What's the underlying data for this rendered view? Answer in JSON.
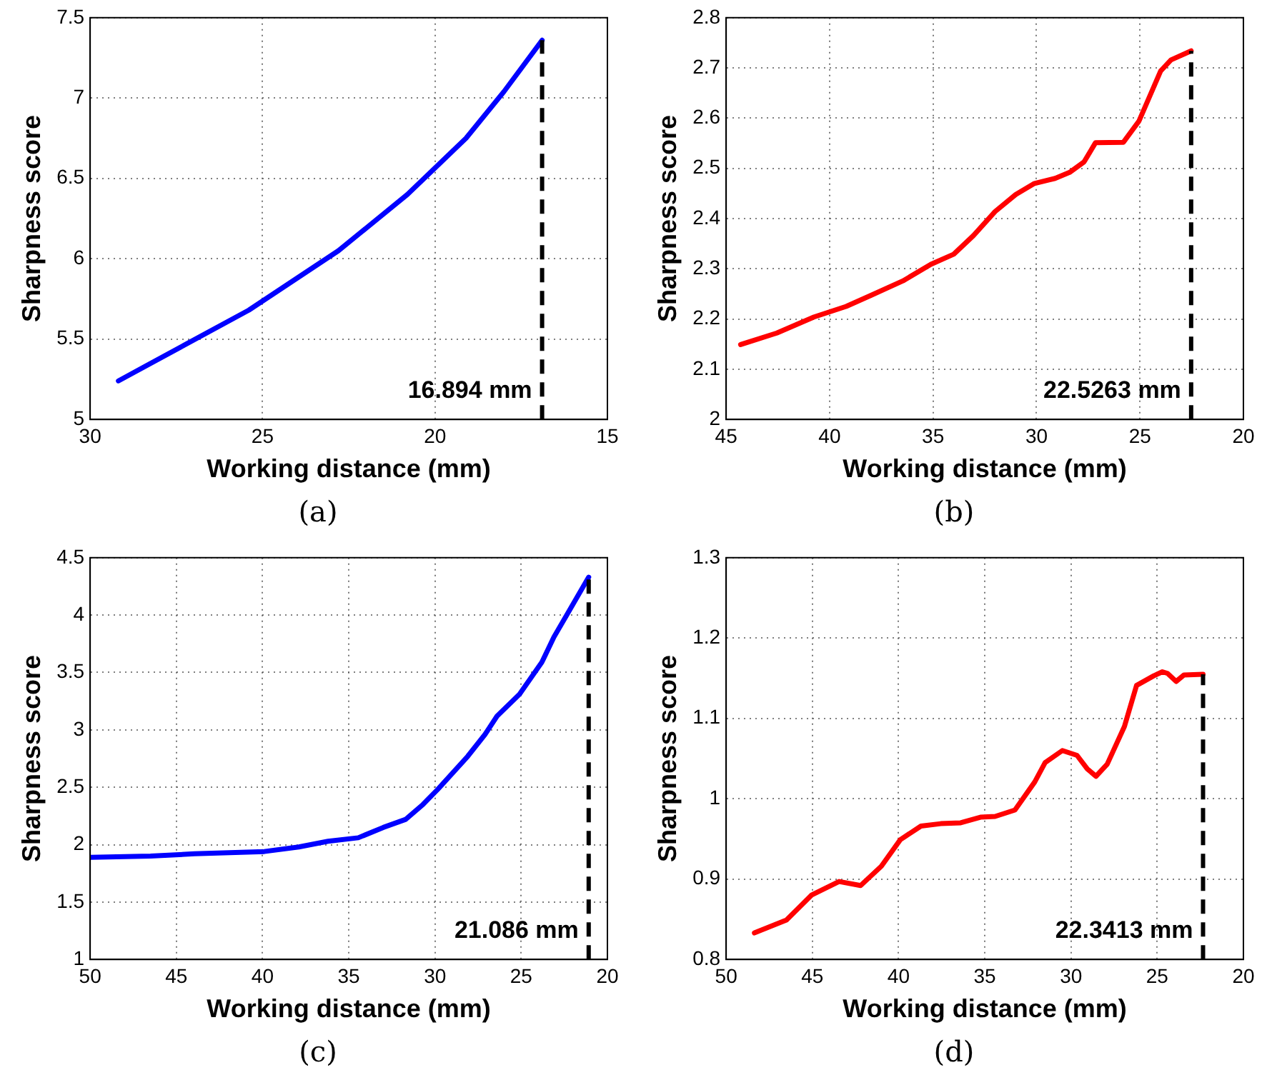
{
  "chart_data": [
    {
      "type": "line",
      "xlabel": "Working distance (mm)",
      "ylabel": "Sharpness score",
      "xlim": [
        30,
        15
      ],
      "xticks": [
        30,
        25,
        20,
        15
      ],
      "ylim": [
        5,
        7.5
      ],
      "yticks": [
        5,
        5.5,
        6,
        6.5,
        7,
        7.5
      ],
      "grid": true,
      "line_style": "solid",
      "marker": "none",
      "annotations": [
        "(a)"
      ],
      "ref_lines": [
        {
          "axis": "x",
          "value": 16.894,
          "label": "16.894 mm",
          "color": "#000000",
          "line_style": "dashed"
        }
      ],
      "series": [
        {
          "color": "#0000ff",
          "x": [
            29.18,
            25.4,
            22.8,
            20.8,
            19.1,
            18.0,
            16.894
          ],
          "values": [
            5.24,
            5.68,
            6.05,
            6.4,
            6.75,
            7.04,
            7.36
          ]
        }
      ]
    },
    {
      "type": "line",
      "xlabel": "Working distance (mm)",
      "ylabel": "Sharpness score",
      "xlim": [
        45,
        20
      ],
      "xticks": [
        45,
        40,
        35,
        30,
        25,
        20
      ],
      "ylim": [
        2,
        2.8
      ],
      "yticks": [
        2,
        2.1,
        2.2,
        2.3,
        2.4,
        2.5,
        2.6,
        2.7,
        2.8
      ],
      "grid": true,
      "line_style": "solid",
      "marker": "none",
      "annotations": [
        "(b)"
      ],
      "ref_lines": [
        {
          "axis": "x",
          "value": 22.5263,
          "label": "22.5263 mm",
          "color": "#000000",
          "line_style": "dashed"
        }
      ],
      "series": [
        {
          "color": "#ff0000",
          "x": [
            44.3,
            42.55,
            40.75,
            39.2,
            38.0,
            36.45,
            35.1,
            34.0,
            33.05,
            32.0,
            31.0,
            30.1,
            29.1,
            28.4,
            27.7,
            27.15,
            25.8,
            25.05,
            24.0,
            23.5,
            22.5263
          ],
          "values": [
            2.149,
            2.172,
            2.204,
            2.225,
            2.247,
            2.276,
            2.309,
            2.329,
            2.366,
            2.414,
            2.448,
            2.47,
            2.48,
            2.492,
            2.513,
            2.551,
            2.552,
            2.594,
            2.694,
            2.716,
            2.734
          ]
        }
      ]
    },
    {
      "type": "line",
      "xlabel": "Working distance (mm)",
      "ylabel": "Sharpness score",
      "xlim": [
        50,
        20
      ],
      "xticks": [
        50,
        45,
        40,
        35,
        30,
        25,
        20
      ],
      "ylim": [
        1,
        4.5
      ],
      "yticks": [
        1,
        1.5,
        2,
        2.5,
        3,
        3.5,
        4,
        4.5
      ],
      "grid": true,
      "line_style": "solid",
      "marker": "none",
      "annotations": [
        "(c)"
      ],
      "ref_lines": [
        {
          "axis": "x",
          "value": 21.086,
          "label": "21.086 mm",
          "color": "#000000",
          "line_style": "dashed"
        }
      ],
      "series": [
        {
          "color": "#0000ff",
          "x": [
            49.94,
            46.5,
            43.95,
            39.9,
            37.9,
            36.2,
            34.45,
            33.0,
            31.7,
            30.7,
            29.85,
            28.1,
            27.1,
            26.4,
            25.1,
            23.8,
            23.1,
            22.4,
            21.086
          ],
          "values": [
            1.89,
            1.9,
            1.92,
            1.94,
            1.98,
            2.03,
            2.06,
            2.15,
            2.22,
            2.35,
            2.48,
            2.77,
            2.96,
            3.12,
            3.31,
            3.59,
            3.81,
            3.99,
            4.33
          ]
        }
      ]
    },
    {
      "type": "line",
      "xlabel": "Working distance (mm)",
      "ylabel": "Sharpness score",
      "xlim": [
        50,
        20
      ],
      "xticks": [
        50,
        45,
        40,
        35,
        30,
        25,
        20
      ],
      "ylim": [
        0.8,
        1.3
      ],
      "yticks": [
        0.8,
        0.9,
        1,
        1.1,
        1.2,
        1.3
      ],
      "grid": true,
      "line_style": "solid",
      "marker": "none",
      "annotations": [
        "(d)"
      ],
      "ref_lines": [
        {
          "axis": "x",
          "value": 22.3413,
          "label": "22.3413 mm",
          "color": "#000000",
          "line_style": "dashed"
        }
      ],
      "series": [
        {
          "color": "#ff0000",
          "x": [
            48.36,
            46.5,
            45.05,
            43.45,
            42.2,
            41.0,
            39.9,
            38.7,
            37.55,
            36.4,
            35.25,
            34.4,
            33.25,
            32.1,
            31.5,
            30.5,
            29.65,
            29.05,
            28.55,
            27.9,
            26.9,
            26.2,
            25.2,
            24.7,
            24.4,
            23.9,
            23.45,
            22.3413
          ],
          "values": [
            0.833,
            0.849,
            0.88,
            0.897,
            0.892,
            0.916,
            0.949,
            0.966,
            0.969,
            0.97,
            0.977,
            0.978,
            0.986,
            1.021,
            1.045,
            1.06,
            1.054,
            1.037,
            1.028,
            1.043,
            1.09,
            1.141,
            1.153,
            1.158,
            1.156,
            1.146,
            1.154,
            1.155
          ]
        }
      ]
    }
  ]
}
